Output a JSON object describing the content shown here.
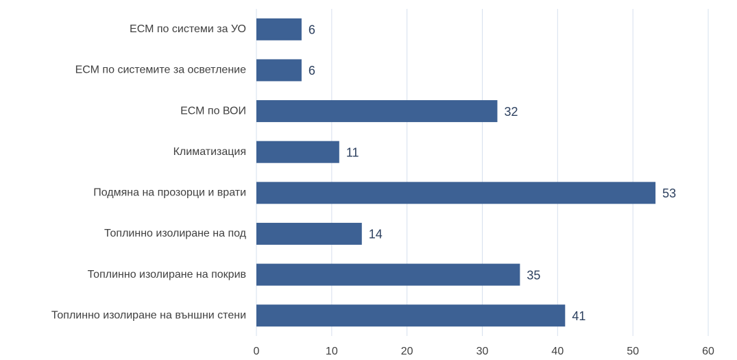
{
  "chart_data": {
    "type": "bar",
    "orientation": "horizontal",
    "categories": [
      "ЕСМ по системи за УО",
      "ЕСМ по системите за осветление",
      "ЕСМ по ВОИ",
      "Климатизация",
      "Подмяна на прозорци и врати",
      "Топлинно изолиране на под",
      "Топлинно изолиране на покрив",
      "Топлинно изолиране на външни стени"
    ],
    "values": [
      6,
      6,
      32,
      11,
      53,
      14,
      35,
      41
    ],
    "color": "#3d6194",
    "xlim": [
      0,
      60
    ],
    "xticks": [
      0,
      10,
      20,
      30,
      40,
      50,
      60
    ],
    "grid": true
  }
}
